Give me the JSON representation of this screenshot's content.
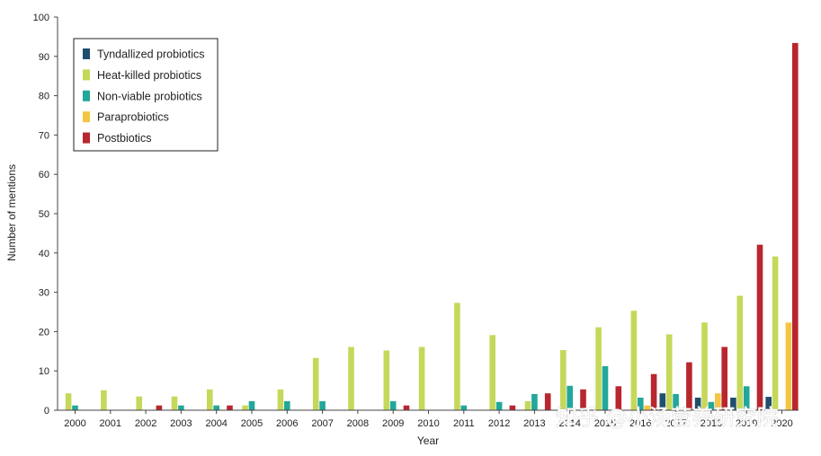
{
  "chart_data": {
    "type": "bar",
    "categories": [
      "2000",
      "2001",
      "2002",
      "2003",
      "2004",
      "2005",
      "2006",
      "2007",
      "2008",
      "2009",
      "2010",
      "2011",
      "2012",
      "2013",
      "2014",
      "2015",
      "2016",
      "2017",
      "2018",
      "2019",
      "2020"
    ],
    "category_labels": [
      "2000",
      "2001",
      "2002",
      "2003",
      "2004",
      "2005",
      "2006",
      "2007",
      "2008",
      "2009",
      "2010",
      "2011",
      "2012",
      "2013",
      "2014",
      "2015",
      "2016",
      "2017",
      "2018",
      "2019",
      "2020"
    ],
    "series": [
      {
        "name": "Tyndallized probiotics",
        "color": "#1f4e6e",
        "values": [
          0,
          0,
          0,
          0,
          0,
          0,
          0,
          0,
          0,
          0,
          0,
          0,
          0,
          0,
          0,
          0,
          0,
          4.3,
          3.2,
          3.2,
          3.4
        ]
      },
      {
        "name": "Heat-killed probiotics",
        "color": "#c5d85a",
        "values": [
          4.3,
          5.1,
          3.5,
          3.5,
          5.3,
          1.2,
          5.3,
          13.3,
          16.1,
          15.2,
          16.1,
          27.3,
          19.1,
          2.3,
          15.3,
          21.1,
          25.3,
          19.3,
          22.3,
          29.1,
          39.1
        ]
      },
      {
        "name": "Non-viable probiotics",
        "color": "#22a79a",
        "values": [
          1.2,
          0,
          0,
          1.2,
          1.2,
          2.3,
          2.3,
          2.3,
          0,
          2.3,
          0,
          1.2,
          2.1,
          4.1,
          6.2,
          11.2,
          3.2,
          4.1,
          2.1,
          6.1,
          0
        ]
      },
      {
        "name": "Paraprobiotics",
        "color": "#f4c542",
        "values": [
          0,
          0,
          0,
          0,
          0,
          0,
          0,
          0,
          0,
          0,
          0,
          0,
          0,
          0,
          0,
          0,
          1.2,
          0,
          4.3,
          0,
          22.3
        ]
      },
      {
        "name": "Postbiotics",
        "color": "#b8262e",
        "values": [
          0,
          0,
          1.2,
          0,
          1.2,
          0,
          0,
          0,
          0,
          1.2,
          0,
          0,
          1.2,
          4.3,
          5.3,
          6.1,
          9.2,
          12.2,
          16.1,
          42.1,
          93.4
        ]
      }
    ],
    "xlabel": "Year",
    "ylabel": "Number of mentions",
    "ylim": [
      0,
      100
    ],
    "yticks": [
      0,
      10,
      20,
      30,
      40,
      50,
      60,
      70,
      80,
      90,
      100
    ],
    "grid": false,
    "legend": "top-left"
  },
  "watermark": "知乎 @小汤营养研究院"
}
